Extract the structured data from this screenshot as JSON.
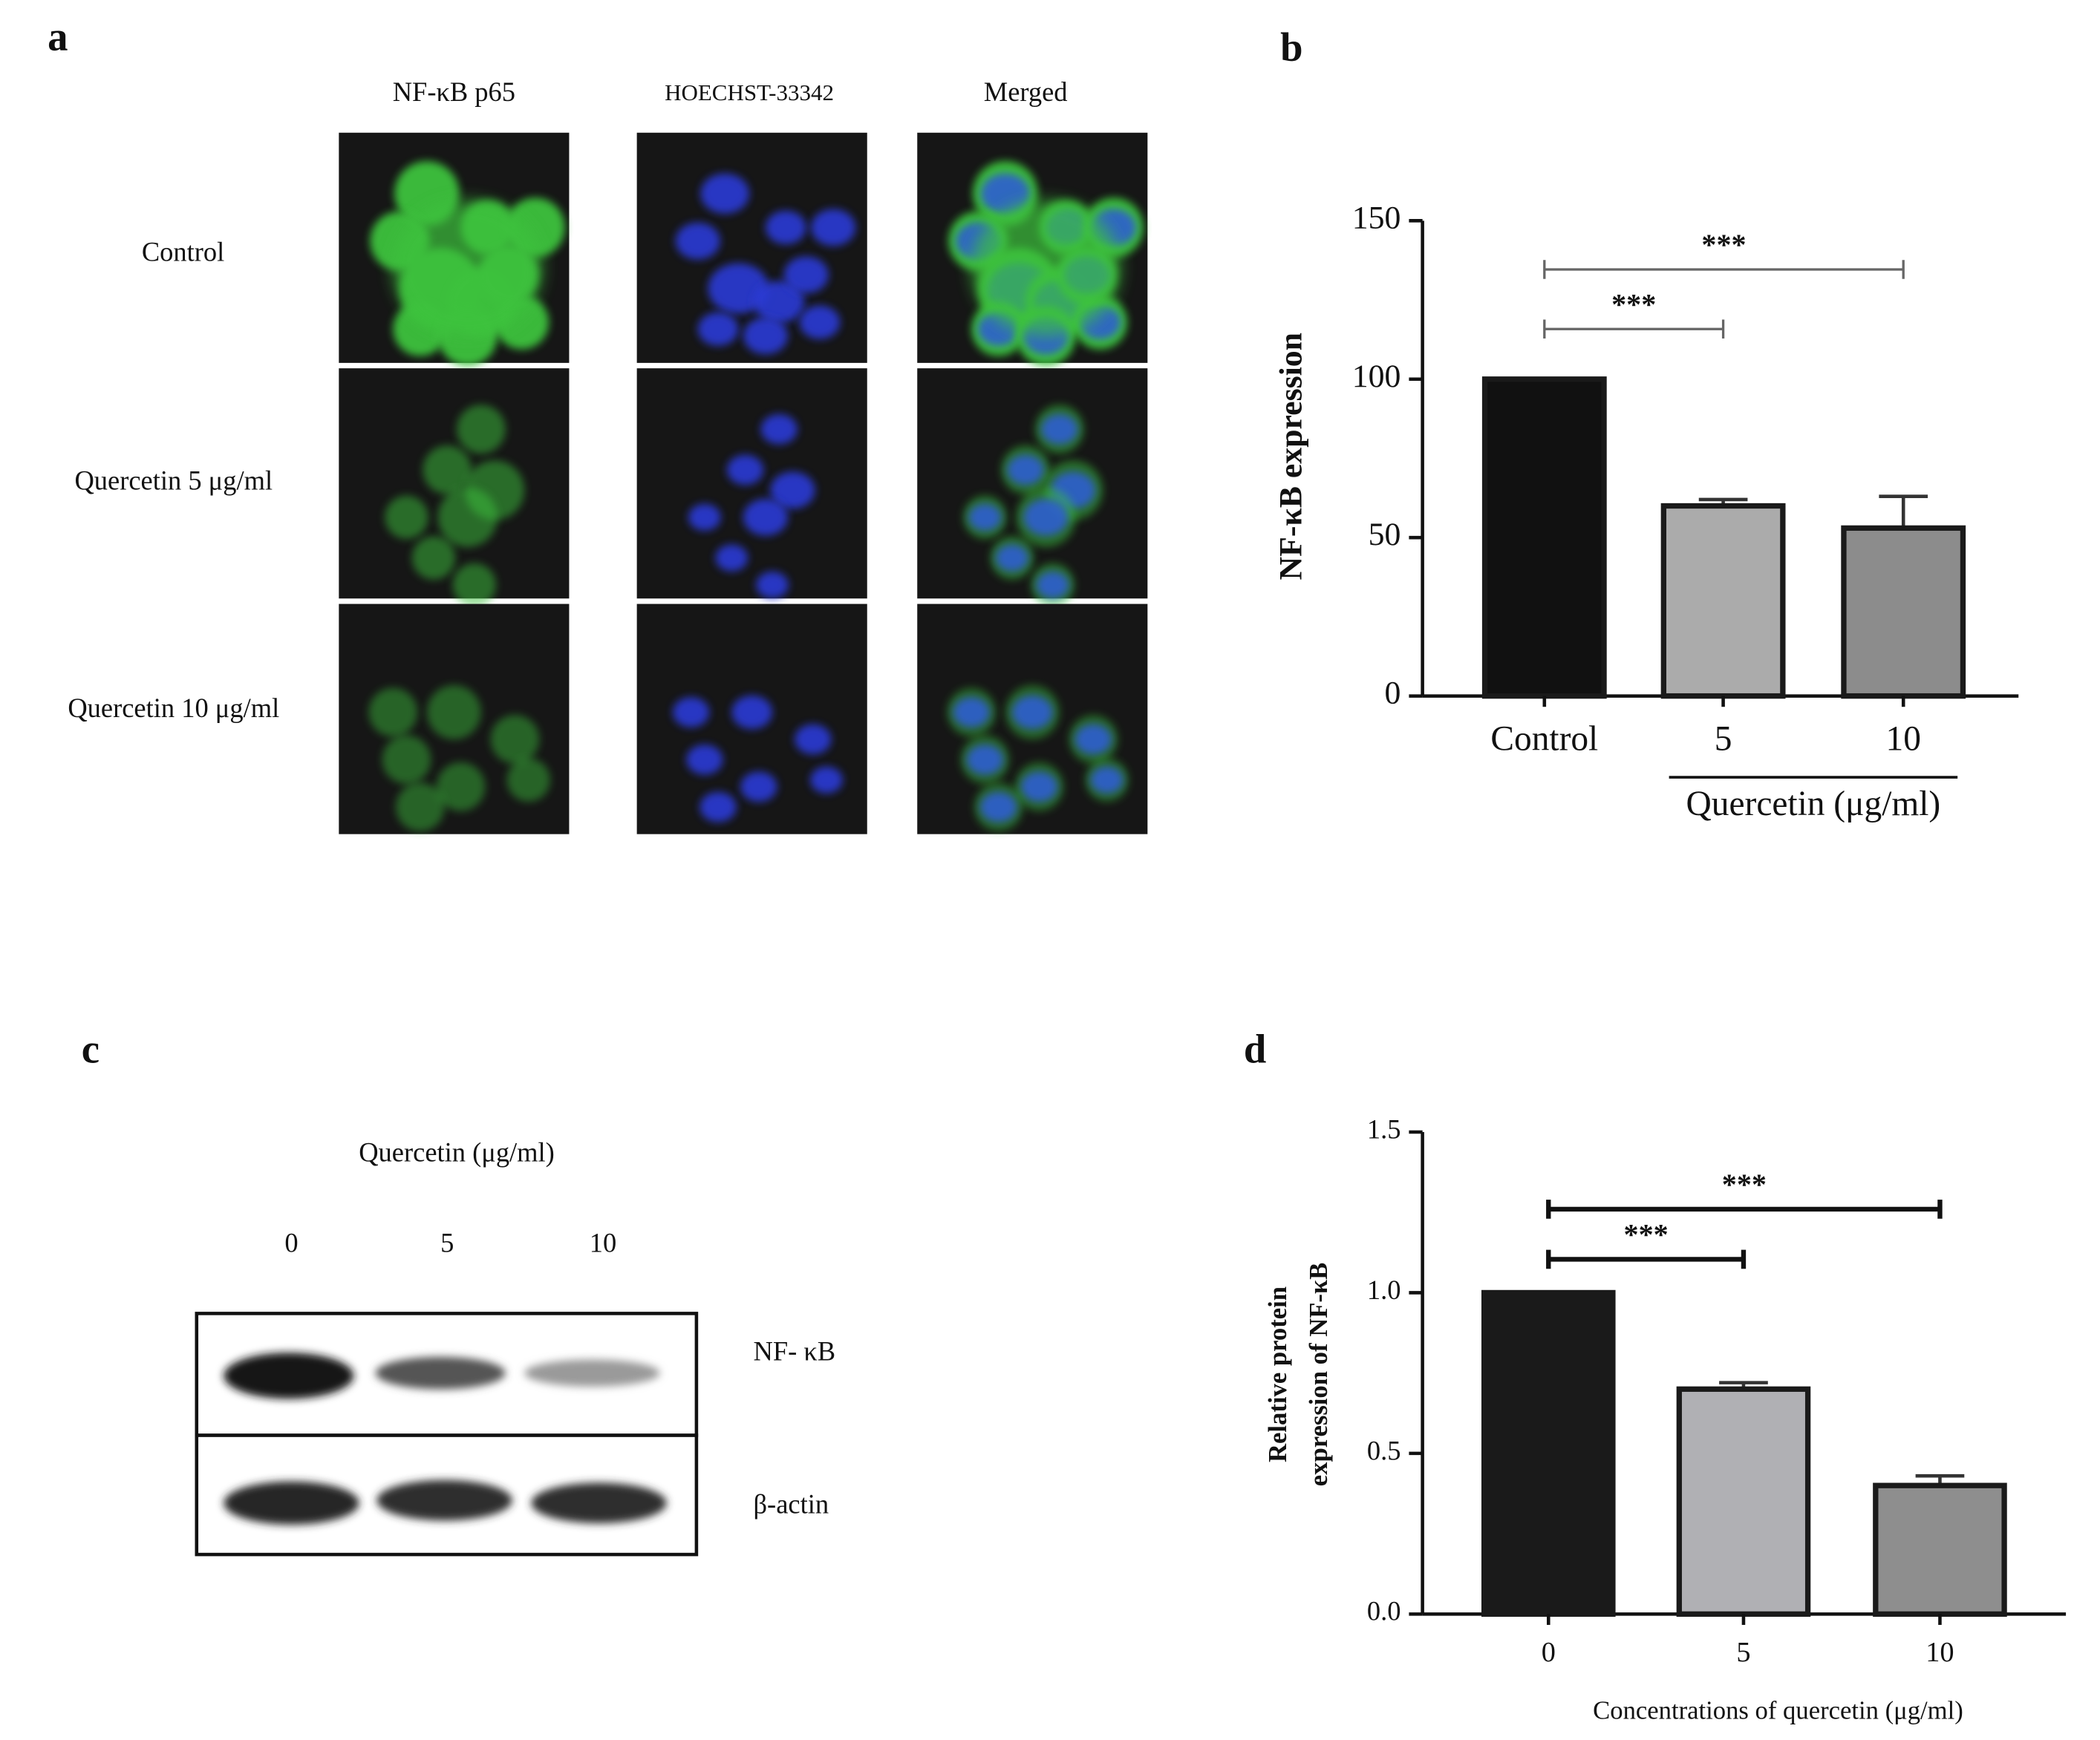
{
  "panel_labels": [
    "a",
    "b",
    "c",
    "d"
  ],
  "immunofluorescence": {
    "columns": [
      "NF-κB p65",
      "HOECHST-33342",
      "Merged"
    ],
    "rows": [
      "Control",
      "Quercetin 5 μg/ml",
      "Quercetin 10 μg/ml"
    ]
  },
  "western_blot": {
    "title": "Quercetin (μg/ml)",
    "lanes": [
      "0",
      "5",
      "10"
    ],
    "bands": [
      "NF- κB",
      "β-actin"
    ]
  },
  "chart_data": [
    {
      "type": "bar",
      "ylabel": [
        "NF-κB expression"
      ],
      "categories": [
        "Control",
        "5",
        "10"
      ],
      "values": [
        100,
        60,
        53
      ],
      "errors": [
        null,
        2,
        10
      ],
      "colors": [
        "#111111",
        "#ababab",
        "#8c8c8c"
      ],
      "ylim": [
        0,
        150
      ],
      "yticks": [
        0,
        50,
        100,
        150
      ],
      "group": {
        "label": "Quercetin (μg/ml)",
        "from": 1,
        "to": 2
      },
      "significance": [
        {
          "label": "***",
          "from": 0,
          "to": 1
        },
        {
          "label": "***",
          "from": 0,
          "to": 2
        }
      ]
    },
    {
      "type": "bar",
      "ylabel": [
        "Relative protein",
        "expression of NF-κB"
      ],
      "xlabel": "Concentrations of quercetin (μg/ml)",
      "categories": [
        "0",
        "5",
        "10"
      ],
      "values": [
        1.0,
        0.7,
        0.4
      ],
      "errors": [
        null,
        0.02,
        0.03
      ],
      "colors": [
        "#1a1a1a",
        "#b0b0b4",
        "#8e8e8e"
      ],
      "ylim": [
        0,
        1.5
      ],
      "yticks": [
        {
          "value": 0,
          "label": "0.0"
        },
        {
          "value": 0.5,
          "label": "0.5"
        },
        {
          "value": 1,
          "label": "1.0"
        },
        {
          "value": 1.5,
          "label": "1.5"
        }
      ],
      "significance": [
        {
          "label": "***",
          "from": 0,
          "to": 1
        },
        {
          "label": "***",
          "from": 0,
          "to": 2
        }
      ]
    }
  ]
}
